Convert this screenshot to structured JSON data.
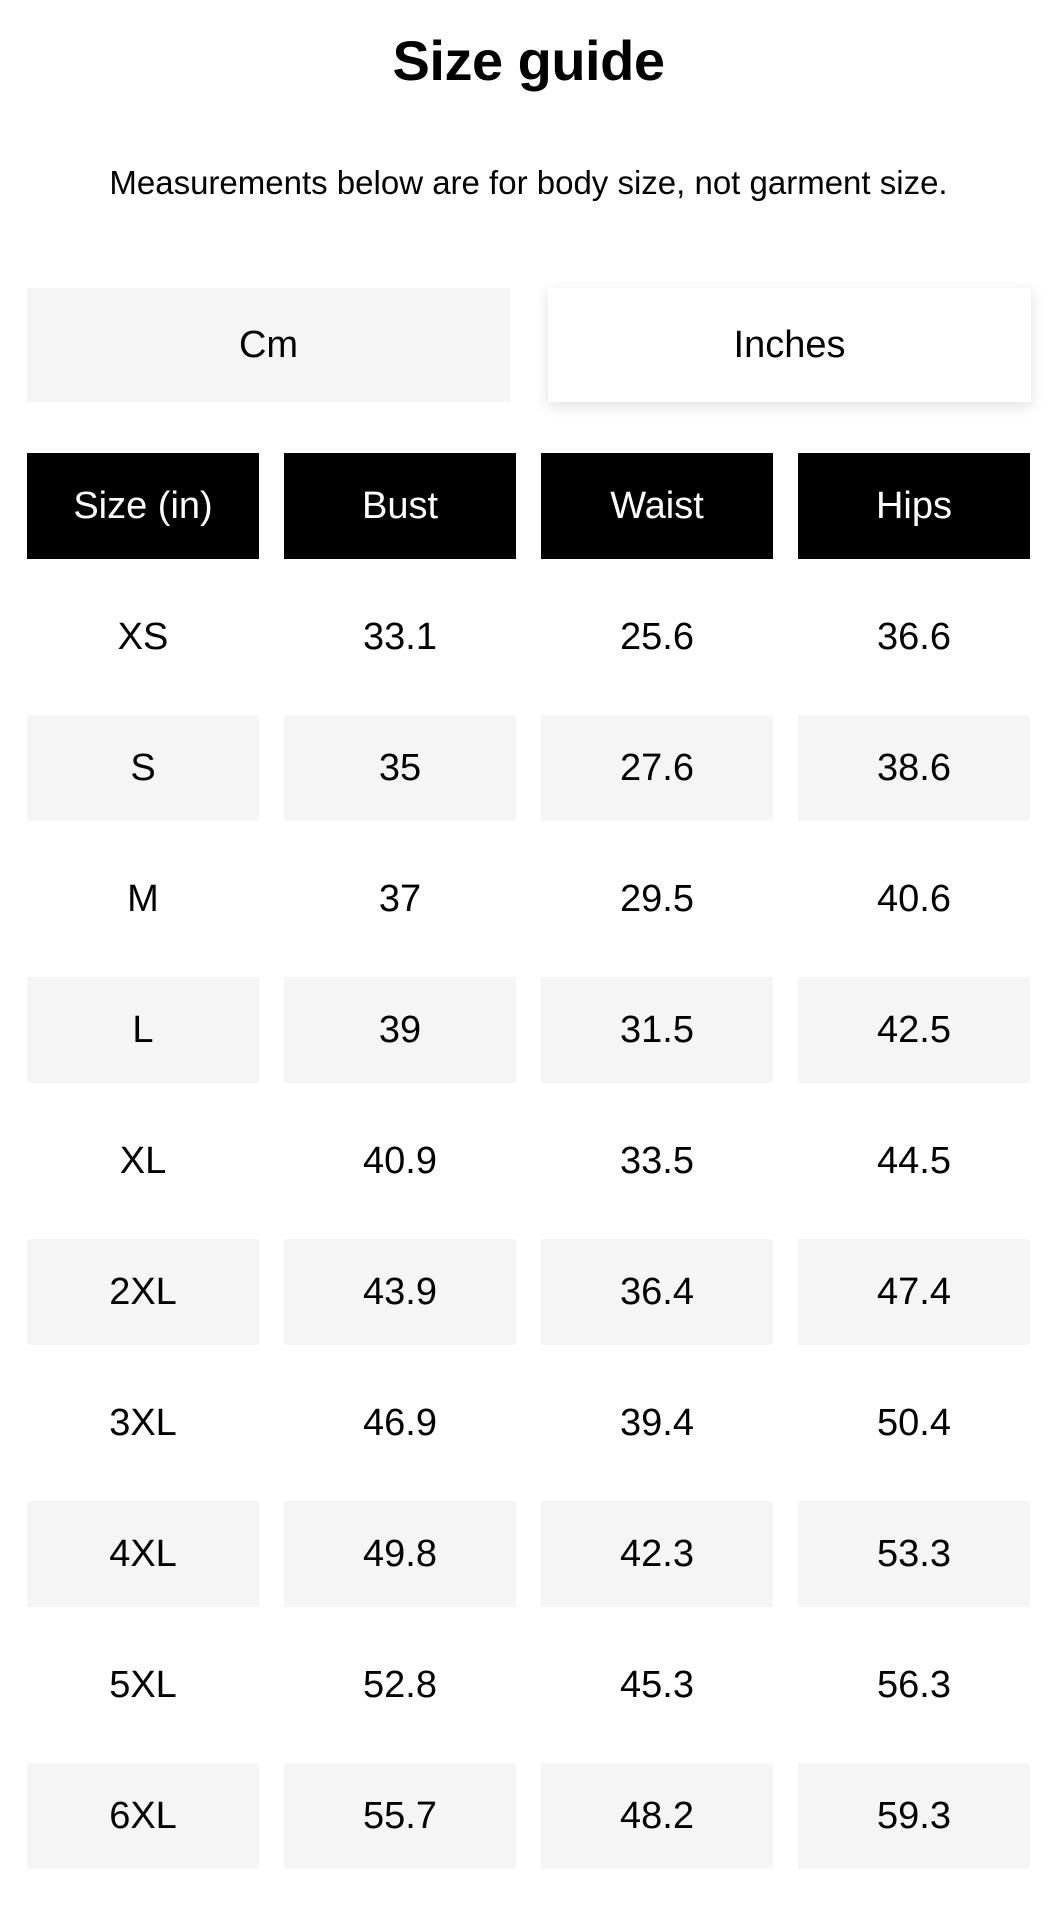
{
  "title": "Size guide",
  "subtitle": "Measurements below are for body size, not garment size.",
  "unit_toggle": {
    "cm": "Cm",
    "inches": "Inches",
    "selected": "Inches"
  },
  "table": {
    "headers": [
      "Size (in)",
      "Bust",
      "Waist",
      "Hips"
    ],
    "rows": [
      [
        "XS",
        "33.1",
        "25.6",
        "36.6"
      ],
      [
        "S",
        "35",
        "27.6",
        "38.6"
      ],
      [
        "M",
        "37",
        "29.5",
        "40.6"
      ],
      [
        "L",
        "39",
        "31.5",
        "42.5"
      ],
      [
        "XL",
        "40.9",
        "33.5",
        "44.5"
      ],
      [
        "2XL",
        "43.9",
        "36.4",
        "47.4"
      ],
      [
        "3XL",
        "46.9",
        "39.4",
        "50.4"
      ],
      [
        "4XL",
        "49.8",
        "42.3",
        "53.3"
      ],
      [
        "5XL",
        "52.8",
        "45.3",
        "56.3"
      ],
      [
        "6XL",
        "55.7",
        "48.2",
        "59.3"
      ]
    ]
  },
  "colors": {
    "header_bg": "#000000",
    "stripe_bg": "#f5f5f5"
  }
}
